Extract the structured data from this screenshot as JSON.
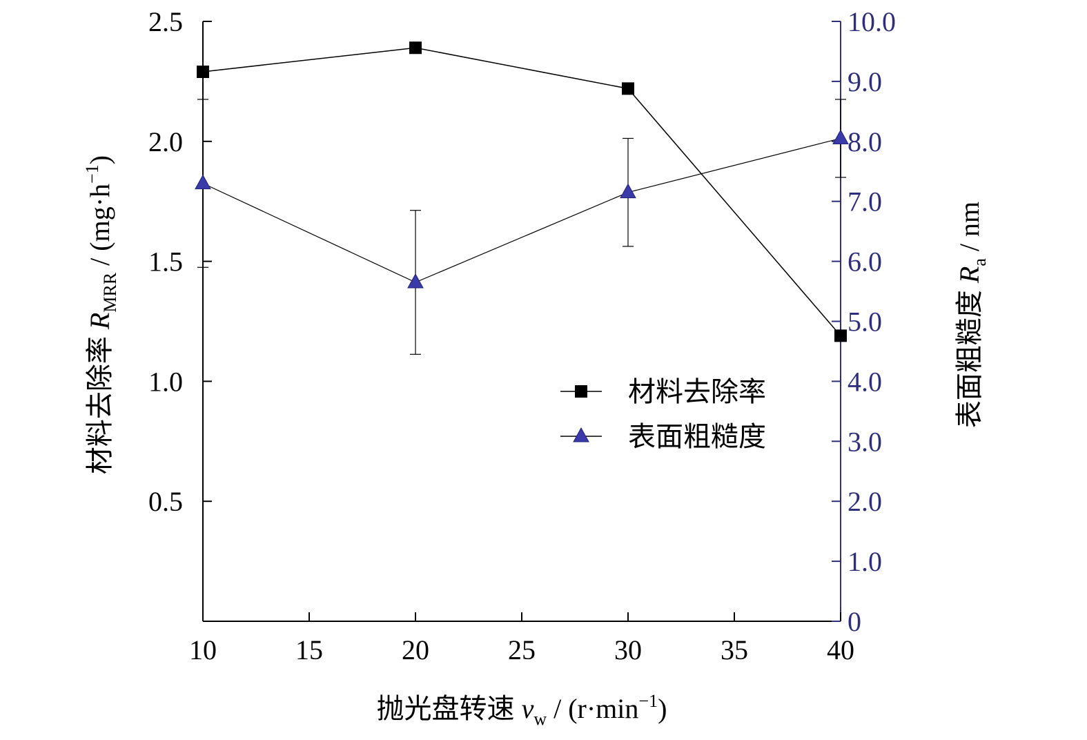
{
  "chart_data": {
    "type": "line",
    "x": [
      10,
      20,
      30,
      40
    ],
    "x_ticks": [
      "10",
      "15",
      "20",
      "25",
      "30",
      "35",
      "40"
    ],
    "xlim": [
      10,
      40
    ],
    "ylim_left": [
      0,
      2.5
    ],
    "y_ticks_left": [
      "0.5",
      "1.0",
      "1.5",
      "2.0",
      "2.5"
    ],
    "ylim_right": [
      0,
      10
    ],
    "y_ticks_right": [
      "0",
      "1.0",
      "2.0",
      "3.0",
      "4.0",
      "5.0",
      "6.0",
      "7.0",
      "8.0",
      "9.0",
      "10.0"
    ],
    "xlabel": "抛光盘转速 vw / (r·min−1)",
    "ylabel_left": "材料去除率 RMRR / (mg·h−1)",
    "ylabel_right": "表面粗糙度 Ra / nm",
    "legend_position": "center-right",
    "colors": {
      "axis_left": "#000000",
      "axis_right": "#2e2e7a",
      "series_mrr": "#000000",
      "series_ra": "#3a3aa8"
    },
    "series": [
      {
        "name": "材料去除率",
        "axis": "left",
        "marker": "square",
        "values": [
          2.29,
          2.39,
          2.22,
          1.19
        ]
      },
      {
        "name": "表面粗糙度",
        "axis": "right",
        "marker": "triangle",
        "values": [
          7.3,
          5.65,
          7.15,
          8.05
        ],
        "error": [
          1.4,
          1.2,
          0.9,
          0.65
        ]
      }
    ]
  }
}
